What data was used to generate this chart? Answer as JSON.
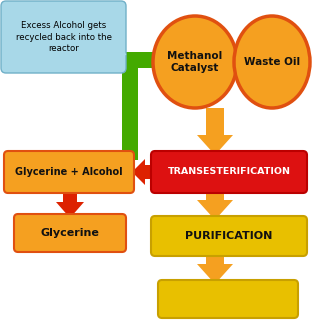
{
  "bg_color": "#ffffff",
  "callout_color": "#a8d8e8",
  "callout_border": "#70b0c8",
  "callout_text": "Excess Alcohol gets\nrecycled back into the\nreactor",
  "callout_text_color": "#000000",
  "methanol_color": "#f5a020",
  "methanol_border": "#e05010",
  "methanol_label": "Methanol\nCatalyst",
  "wasteoil_color": "#f5a020",
  "wasteoil_border": "#e05010",
  "wasteoil_label": "Waste Oil",
  "trans_box_color": "#dd1111",
  "trans_border": "#bb0000",
  "trans_label": "TRANSESTERIFICATION",
  "ga_box_color": "#f5a020",
  "ga_border": "#e05010",
  "ga_label": "Glycerine + Alcohol",
  "glycerine_box_color": "#f5a020",
  "glycerine_border": "#e05010",
  "glycerine_label": "Glycerine",
  "pur_box_color": "#e8c000",
  "pur_border": "#c8a000",
  "pur_label": "PURIFICATION",
  "bot_box_color": "#e8c000",
  "bot_border": "#c8a000",
  "orange_arrow": "#f5a020",
  "red_arrow": "#dd2200",
  "green_arrow": "#44aa00"
}
